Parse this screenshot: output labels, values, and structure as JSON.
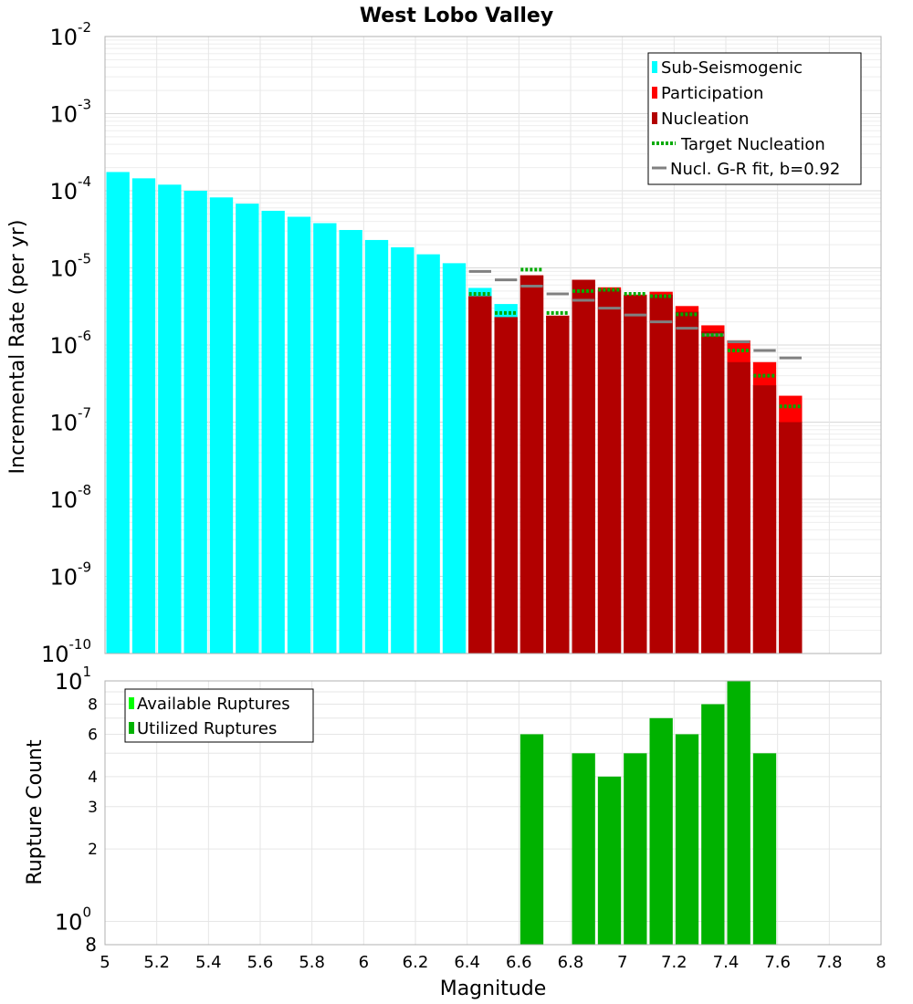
{
  "title": "West Lobo Valley",
  "xlabel": "Magnitude",
  "x_ticks": [
    "5",
    "5.2",
    "5.4",
    "5.6",
    "5.8",
    "6",
    "6.2",
    "6.4",
    "6.6",
    "6.8",
    "7",
    "7.2",
    "7.4",
    "7.6",
    "7.8",
    "8"
  ],
  "chart_data": [
    {
      "type": "bar",
      "title": "West Lobo Valley",
      "xlabel": "Magnitude",
      "ylabel": "Incremental Rate (per yr)",
      "xlim": [
        5,
        8
      ],
      "ylim": [
        1e-10,
        0.01
      ],
      "yscale": "log",
      "grid": true,
      "y_tick_mantissa": [
        "10",
        "10",
        "10",
        "10",
        "10",
        "10",
        "10",
        "10",
        "10"
      ],
      "y_tick_exponent": [
        "-10",
        "-9",
        "-8",
        "-7",
        "-6",
        "-5",
        "-4",
        "-3",
        "-2"
      ],
      "legend_position": "top-right",
      "legend": [
        "Sub-Seismogenic",
        "Participation",
        "Nucleation",
        "Target Nucleation",
        "Nucl. G-R fit, b=0.92"
      ],
      "colors": {
        "sub_seismogenic": "#00ffff",
        "participation": "#ff0000",
        "nucleation": "#b20000",
        "target_nucleation": "#00aa00",
        "gr_fit": "#808080"
      },
      "bin_width": 0.1,
      "sub_seismogenic": {
        "x": [
          5.05,
          5.15,
          5.25,
          5.35,
          5.45,
          5.55,
          5.65,
          5.75,
          5.85,
          5.95,
          6.05,
          6.15,
          6.25,
          6.35,
          6.45,
          6.55
        ],
        "values": [
          0.000175,
          0.000145,
          0.00012,
          0.0001,
          8.2e-05,
          6.8e-05,
          5.5e-05,
          4.6e-05,
          3.8e-05,
          3.1e-05,
          2.3e-05,
          1.85e-05,
          1.5e-05,
          1.15e-05,
          5.5e-06,
          3.4e-06
        ]
      },
      "participation": {
        "x": [
          6.45,
          6.55,
          6.65,
          6.75,
          6.85,
          6.95,
          7.05,
          7.15,
          7.25,
          7.35,
          7.45,
          7.55,
          7.65
        ],
        "values": [
          4.3e-06,
          2.3e-06,
          8e-06,
          2.4e-06,
          7e-06,
          5.6e-06,
          4.5e-06,
          4.9e-06,
          3.2e-06,
          1.8e-06,
          1.15e-06,
          6e-07,
          2.2e-07
        ]
      },
      "nucleation": {
        "x": [
          6.45,
          6.55,
          6.65,
          6.75,
          6.85,
          6.95,
          7.05,
          7.15,
          7.25,
          7.35,
          7.45,
          7.55,
          7.65
        ],
        "values": [
          4.3e-06,
          2.3e-06,
          8e-06,
          2.4e-06,
          7e-06,
          5.2e-06,
          4.4e-06,
          4.5e-06,
          2.7e-06,
          1.5e-06,
          6e-07,
          3e-07,
          1e-07
        ]
      },
      "target_nucleation": {
        "x": [
          6.45,
          6.55,
          6.65,
          6.75,
          6.85,
          6.95,
          7.05,
          7.15,
          7.25,
          7.35,
          7.45,
          7.55,
          7.65
        ],
        "values": [
          4.6e-06,
          2.6e-06,
          9.5e-06,
          2.6e-06,
          5e-06,
          5.2e-06,
          4.6e-06,
          4.3e-06,
          2.5e-06,
          1.35e-06,
          8.5e-07,
          4e-07,
          1.6e-07
        ]
      },
      "gr_fit": {
        "x": [
          6.45,
          6.55,
          6.65,
          6.75,
          6.85,
          6.95,
          7.05,
          7.15,
          7.25,
          7.35,
          7.45,
          7.55,
          7.65
        ],
        "values": [
          9e-06,
          7e-06,
          5.8e-06,
          4.6e-06,
          3.8e-06,
          3e-06,
          2.45e-06,
          2e-06,
          1.65e-06,
          1.35e-06,
          1.1e-06,
          8.5e-07,
          6.8e-07
        ]
      }
    },
    {
      "type": "bar",
      "ylabel": "Rupture Count",
      "xlim": [
        5,
        8
      ],
      "ylim": [
        0.8,
        10
      ],
      "yscale": "log",
      "grid": true,
      "y_ticks_minor": [
        "8",
        "6",
        "4",
        "3",
        "2"
      ],
      "y_tick_top": {
        "mantissa": "10",
        "exponent": "1"
      },
      "y_tick_bottom": {
        "mantissa": "10",
        "exponent": "0",
        "extra": "8"
      },
      "legend_position": "top-left",
      "legend": [
        "Available Ruptures",
        "Utilized Ruptures"
      ],
      "colors": {
        "available": "#00ff00",
        "utilized": "#00b200"
      },
      "bin_width": 0.1,
      "utilized": {
        "x": [
          6.65,
          6.85,
          6.95,
          7.05,
          7.15,
          7.25,
          7.35,
          7.45,
          7.55
        ],
        "values": [
          6,
          5,
          4,
          5,
          7,
          6,
          8,
          10,
          5
        ]
      }
    }
  ]
}
